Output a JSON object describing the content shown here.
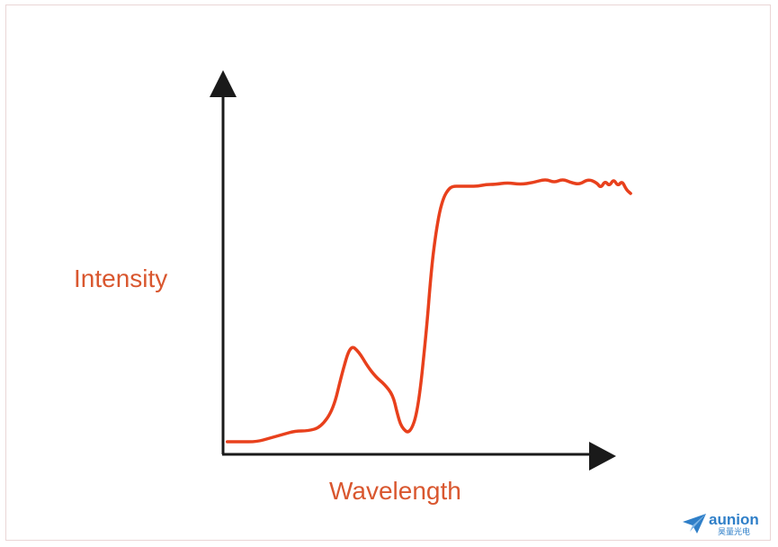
{
  "chart_data": {
    "type": "line",
    "xlabel": "Wavelength",
    "ylabel": "Intensity",
    "title": "",
    "xlim": [
      0,
      100
    ],
    "ylim": [
      0,
      100
    ],
    "grid": false,
    "axis_ticks": false,
    "line_color": "#e8401c",
    "label_color": "#d9572f",
    "axis_color": "#1a1a1a",
    "series": [
      {
        "x": [
          1,
          4,
          8,
          11,
          14,
          17,
          20,
          23,
          26,
          28,
          30,
          32,
          34,
          36,
          38,
          40,
          41,
          42,
          44,
          46,
          48,
          49,
          50,
          51,
          52,
          53,
          54,
          56,
          58,
          60,
          62,
          64,
          67,
          70,
          73,
          76,
          78,
          80,
          82,
          84,
          86,
          88,
          89,
          90,
          91,
          92,
          93,
          94,
          95,
          96
        ],
        "y": [
          3,
          3,
          3,
          4,
          5,
          6,
          6,
          7,
          12,
          22,
          30,
          28,
          24,
          21,
          19,
          16,
          11,
          7,
          5,
          12,
          35,
          50,
          60,
          67,
          71,
          73,
          74,
          74,
          74,
          74,
          74.5,
          74.5,
          75,
          74.5,
          75,
          76,
          75,
          76,
          75,
          74.5,
          76,
          75,
          73.5,
          75.5,
          74,
          76,
          74,
          75.5,
          73,
          72
        ]
      }
    ]
  },
  "watermark": {
    "name": "aunion",
    "subtitle": "昊量光电",
    "color": "#2f7fc8"
  }
}
